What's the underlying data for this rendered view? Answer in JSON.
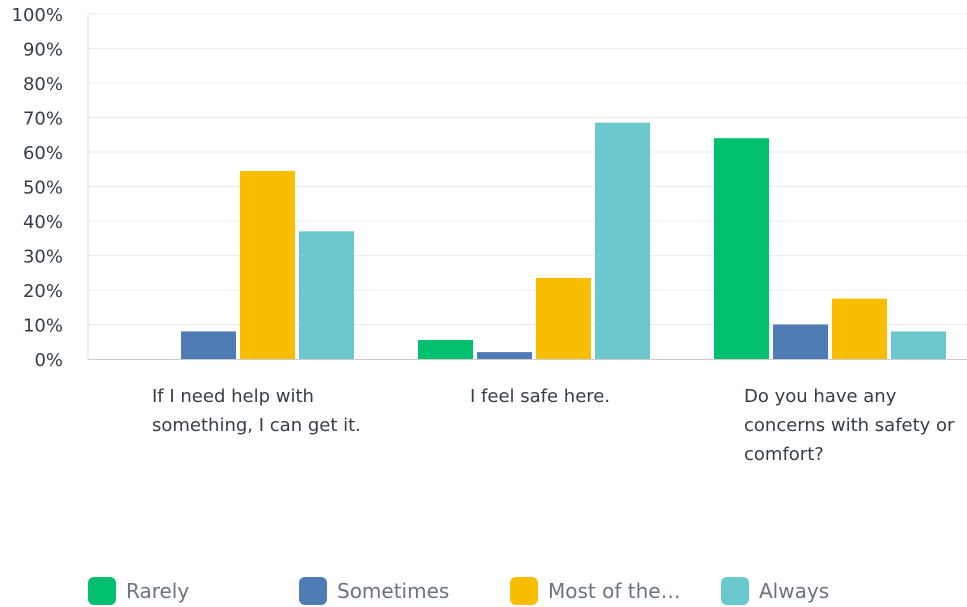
{
  "chart_data": {
    "type": "bar",
    "categories": [
      "If I need help with something, I can get it.",
      "I feel safe here.",
      "Do you have any concerns with safety or comfort?"
    ],
    "series": [
      {
        "name": "Rarely",
        "color": "#00bf6f",
        "values": [
          0,
          5.5,
          64
        ]
      },
      {
        "name": "Sometimes",
        "color": "#507cb6",
        "values": [
          8,
          2,
          10
        ]
      },
      {
        "name": "Most of the…",
        "color": "#f9be00",
        "values": [
          54.5,
          23.5,
          17.5
        ]
      },
      {
        "name": "Always",
        "color": "#6bc8cd",
        "values": [
          37,
          68.5,
          8
        ]
      }
    ],
    "yticks": [
      "0%",
      "10%",
      "20%",
      "30%",
      "40%",
      "50%",
      "60%",
      "70%",
      "80%",
      "90%",
      "100%"
    ],
    "ylim": [
      0,
      100
    ],
    "grid": true,
    "legend_position": "bottom",
    "title": "",
    "xlabel": "",
    "ylabel": ""
  }
}
